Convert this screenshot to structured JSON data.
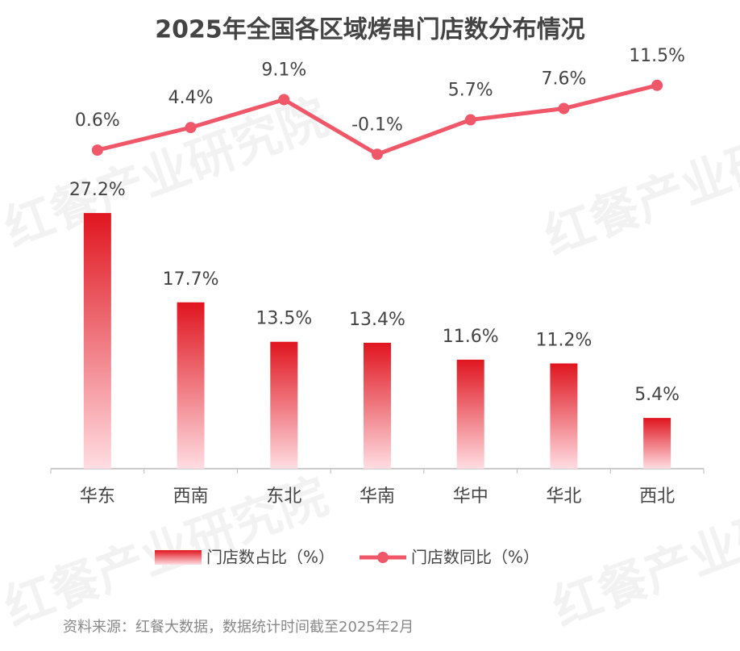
{
  "chart_data": {
    "type": "bar-line",
    "title": "2025年全国各区域烤串门店数分布情况",
    "categories": [
      "华东",
      "西南",
      "东北",
      "华南",
      "华中",
      "华北",
      "西北"
    ],
    "series": [
      {
        "name": "门店数占比（%）",
        "type": "bar",
        "color": "#e0151f",
        "values": [
          27.2,
          17.7,
          13.5,
          13.4,
          11.6,
          11.2,
          5.4
        ],
        "value_labels": [
          "27.2%",
          "17.7%",
          "13.5%",
          "13.4%",
          "11.6%",
          "11.2%",
          "5.4%"
        ]
      },
      {
        "name": "门店数同比（%）",
        "type": "line",
        "axis": "y2",
        "color": "#f0586a",
        "values": [
          0.6,
          4.4,
          9.1,
          -0.1,
          5.7,
          7.6,
          11.5
        ],
        "value_labels": [
          "0.6%",
          "4.4%",
          "9.1%",
          "-0.1%",
          "5.7%",
          "7.6%",
          "11.5%"
        ]
      }
    ],
    "ylim": [
      0,
      43
    ],
    "y2lim": [
      -53,
      15
    ],
    "source": "资料来源：红餐大数据，数据统计时间截至2025年2月",
    "watermark": "红餐产业研究院"
  }
}
